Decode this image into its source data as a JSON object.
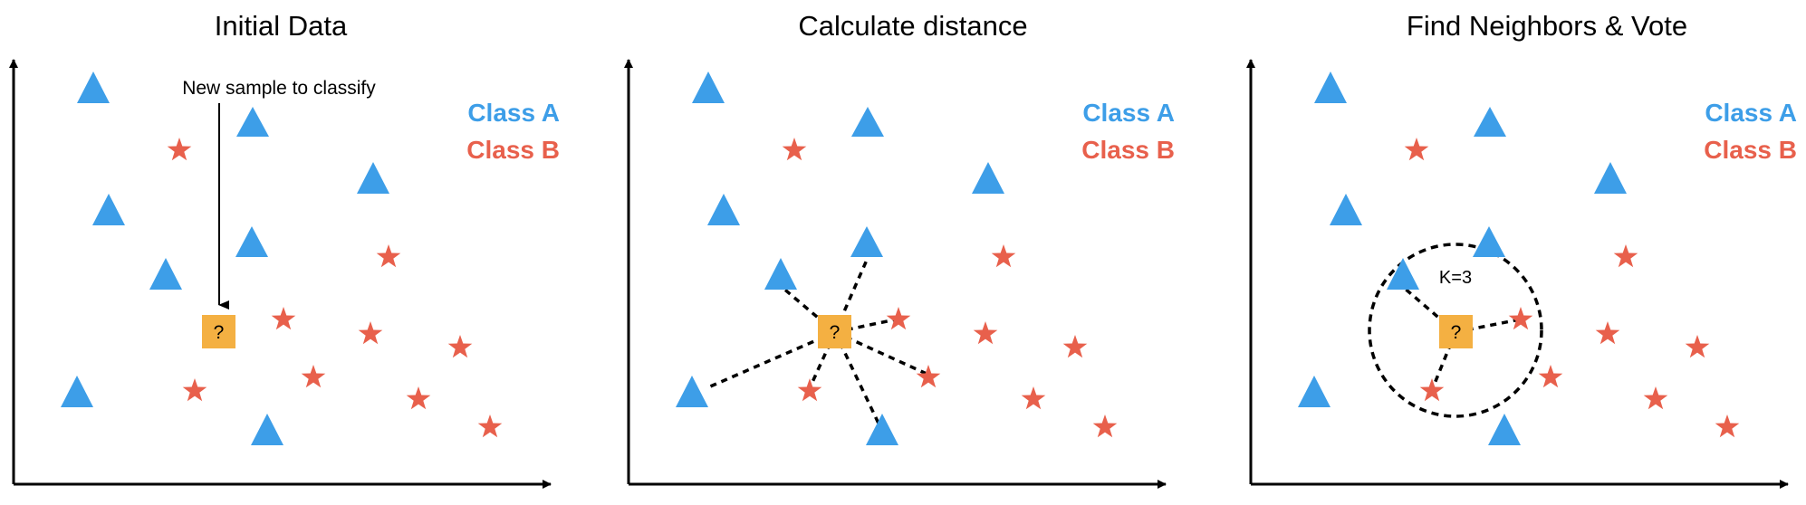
{
  "colors": {
    "class_a": "#3d9ee8",
    "class_b": "#e8604c",
    "sample": "#f4b042",
    "ink": "#000000"
  },
  "panels": [
    {
      "title": "Initial Data",
      "legend": {
        "class_a_label": "Class A",
        "class_b_label": "Class B"
      },
      "callout": "New sample to classify",
      "query_label": "?"
    },
    {
      "title": "Calculate distance",
      "legend": {
        "class_a_label": "Class A",
        "class_b_label": "Class B"
      },
      "query_label": "?"
    },
    {
      "title": "Find Neighbors & Vote",
      "legend": {
        "class_a_label": "Class A",
        "class_b_label": "Class B"
      },
      "query_label": "?",
      "k_label": "K=3"
    }
  ]
}
